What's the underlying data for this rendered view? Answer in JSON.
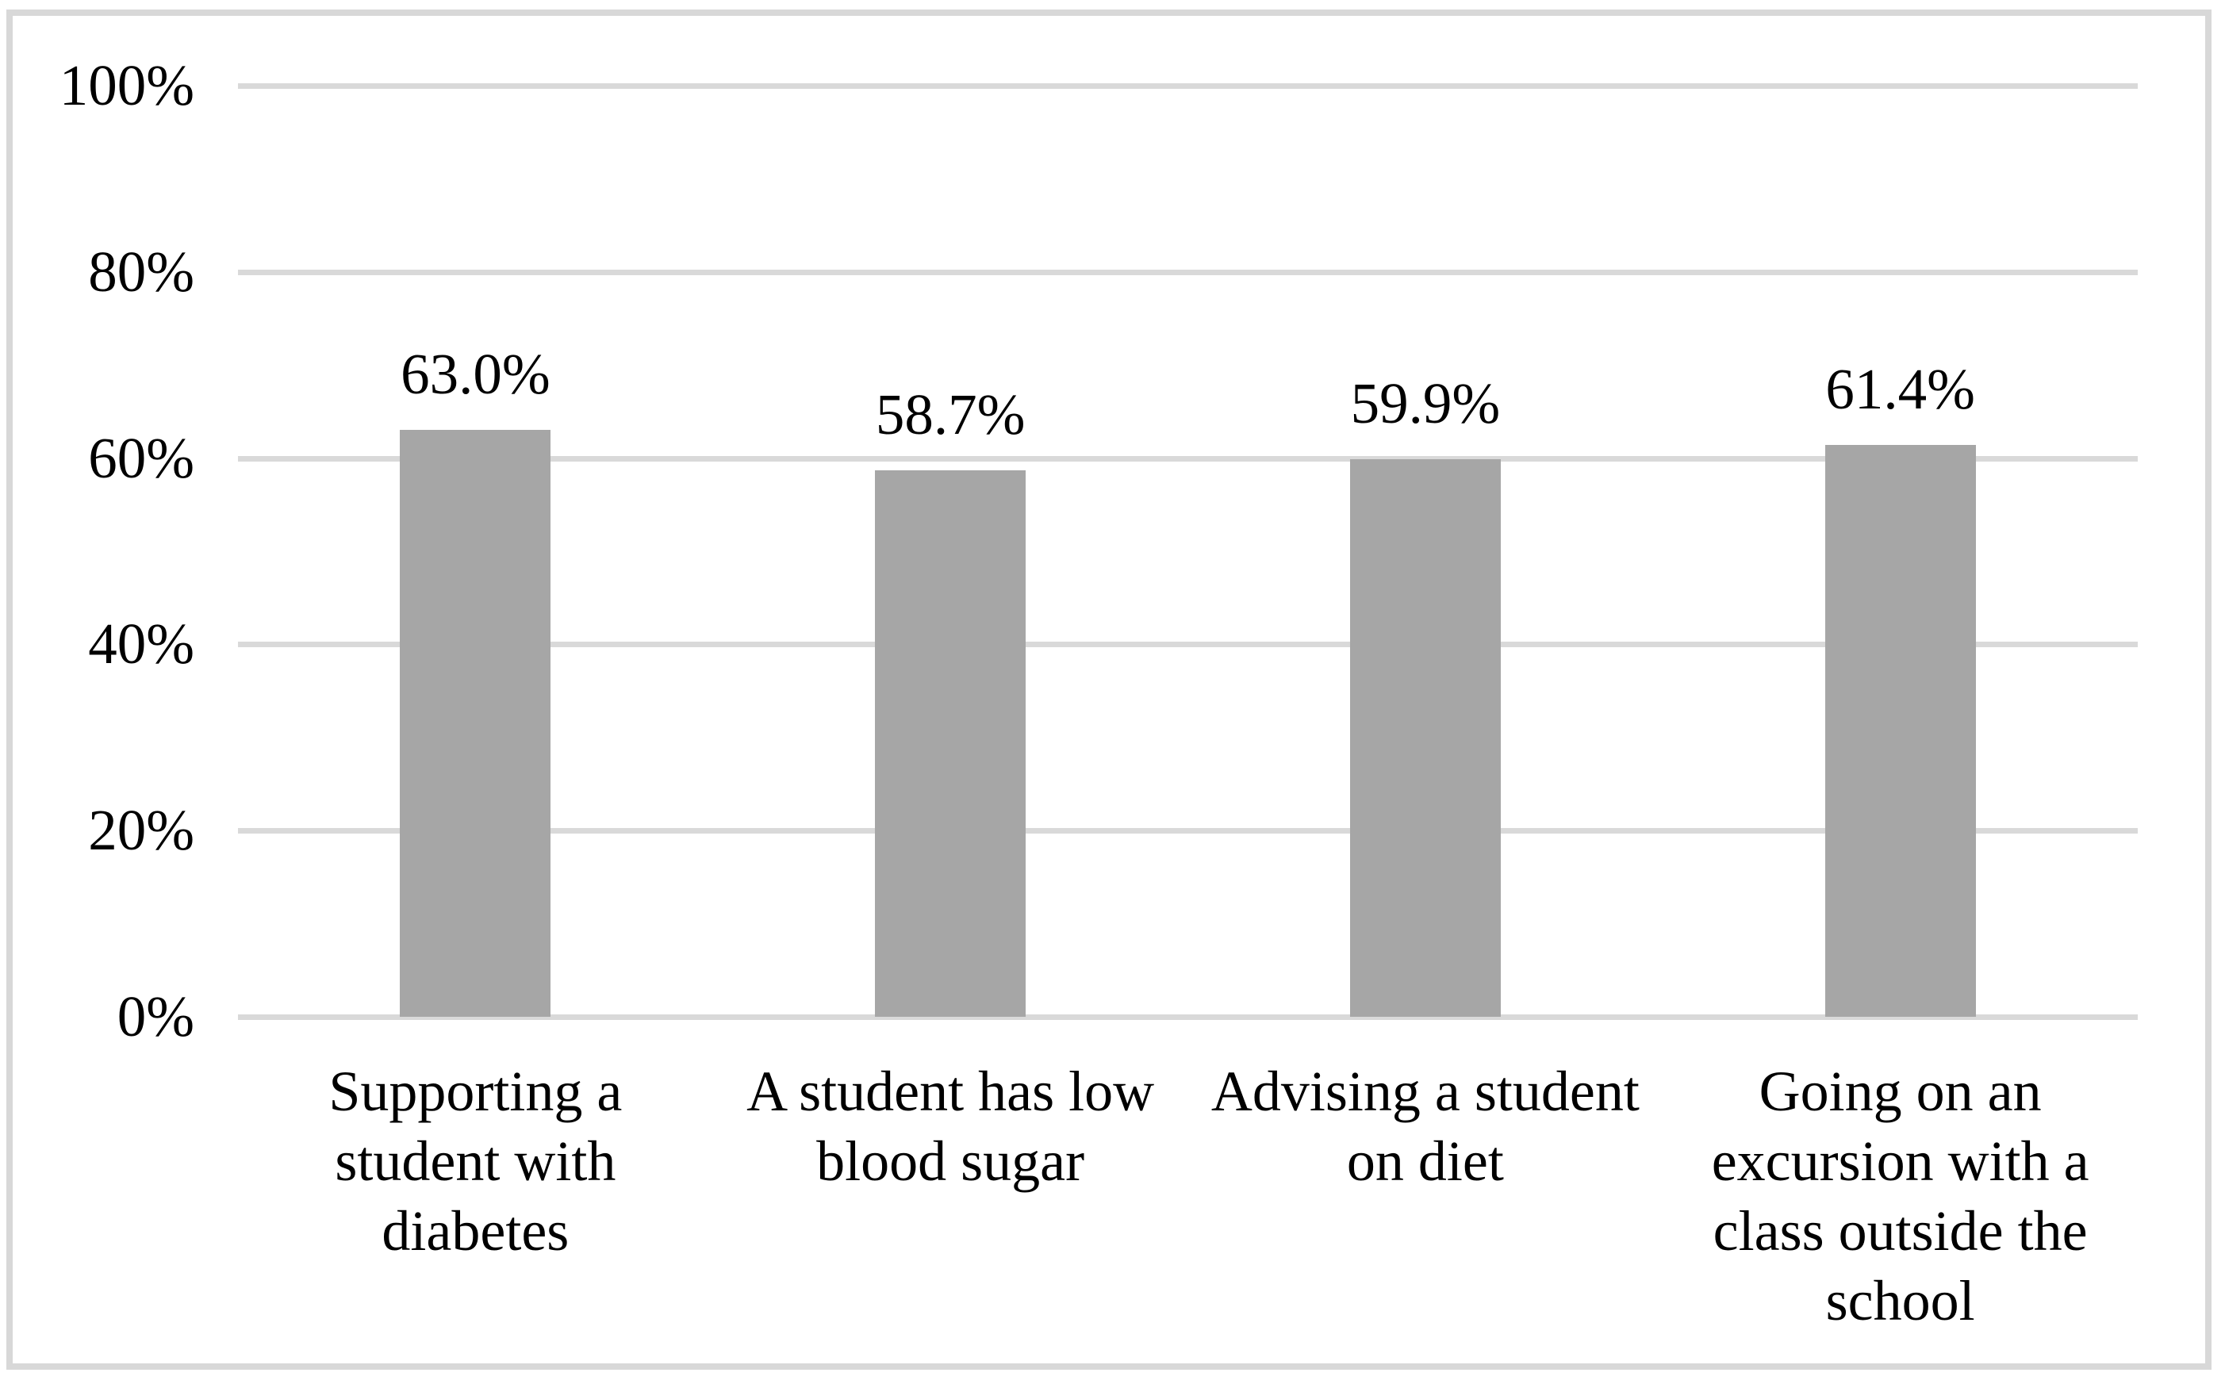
{
  "chart_data": {
    "type": "bar",
    "title": "",
    "xlabel": "",
    "ylabel": "",
    "ylim": [
      0,
      100
    ],
    "grid": true,
    "legend": false,
    "y_tick_values": [
      0,
      20,
      40,
      60,
      80,
      100
    ],
    "y_tick_labels": [
      "0%",
      "20%",
      "40%",
      "60%",
      "80%",
      "100%"
    ],
    "categories": [
      [
        "Supporting a",
        "student with",
        "diabetes"
      ],
      [
        "A student has low",
        "blood sugar"
      ],
      [
        "Advising a student",
        "on diet"
      ],
      [
        "Going on an",
        "excursion with a",
        "class outside the",
        "school"
      ]
    ],
    "values": [
      63.0,
      58.7,
      59.9,
      61.4
    ],
    "bar_labels": [
      "63.0%",
      "58.7%",
      "59.9%",
      "61.4%"
    ],
    "bar_color": "#a6a6a6",
    "gridline_color": "#d9d9d9",
    "frame_border_color": "#d8d8d8",
    "text_color": "#000000"
  }
}
